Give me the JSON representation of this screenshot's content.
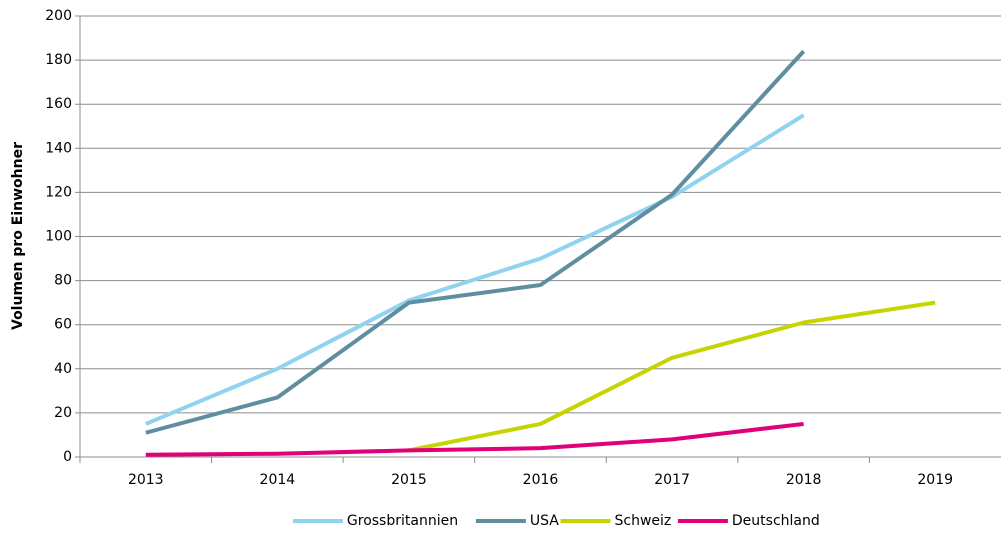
{
  "chart_data": {
    "type": "line",
    "y_label": "Volumen pro Einwohner",
    "categories": [
      "2013",
      "2014",
      "2015",
      "2016",
      "2017",
      "2018",
      "2019"
    ],
    "series": [
      {
        "name": "Grossbritannien",
        "color": "#8fd3f0",
        "values": [
          15,
          40,
          71,
          90,
          118,
          155,
          null
        ]
      },
      {
        "name": "USA",
        "color": "#5f8ea0",
        "values": [
          11,
          27,
          70,
          78,
          119,
          184,
          null
        ]
      },
      {
        "name": "Schweiz",
        "color": "#c8d400",
        "values": [
          null,
          null,
          3,
          15,
          45,
          61,
          70
        ]
      },
      {
        "name": "Deutschland",
        "color": "#e0007a",
        "values": [
          1,
          1.5,
          3,
          4,
          8,
          15,
          null
        ]
      }
    ],
    "ylim": [
      0,
      200
    ],
    "yticks": [
      0,
      20,
      40,
      60,
      80,
      100,
      120,
      140,
      160,
      180,
      200
    ],
    "grid": true,
    "legend": "bottom"
  }
}
